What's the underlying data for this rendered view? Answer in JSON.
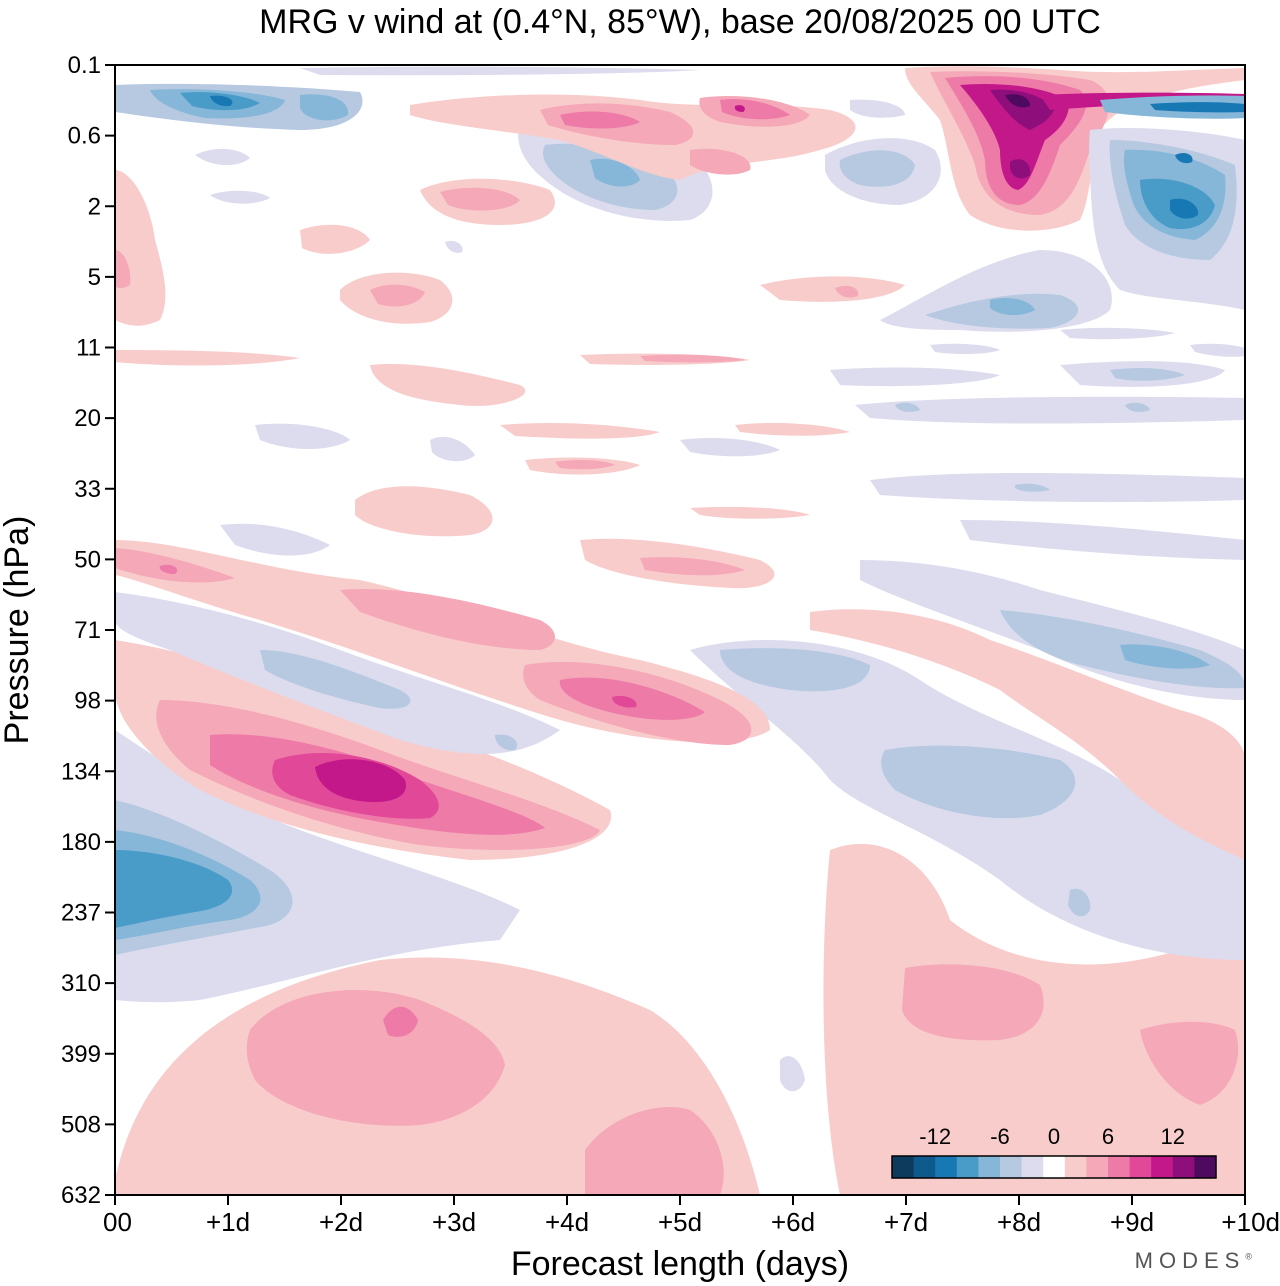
{
  "chart_data": {
    "type": "heatmap",
    "title": "MRG v wind at (0.4°N, 85°W),  base 20/08/2025  00 UTC",
    "xlabel": "Forecast length (days)",
    "ylabel": "Pressure (hPa)",
    "x_ticks": [
      "00",
      "+1d",
      "+2d",
      "+3d",
      "+4d",
      "+5d",
      "+6d",
      "+7d",
      "+8d",
      "+9d",
      "+10d"
    ],
    "x_range_days": [
      0,
      10
    ],
    "y_ticks": [
      "0.1",
      "0.6",
      "2",
      "5",
      "11",
      "20",
      "33",
      "50",
      "71",
      "98",
      "134",
      "180",
      "237",
      "310",
      "399",
      "508",
      "632"
    ],
    "y_axis": "log-pressure, top 0.1 hPa to bottom 632 hPa",
    "colorbar": {
      "labels": [
        "-12",
        "-6",
        "0",
        "6",
        "12"
      ],
      "levels": [
        -16,
        -14,
        -12,
        -10,
        -8,
        -6,
        -4,
        -2,
        2,
        4,
        6,
        8,
        10,
        12,
        14,
        16
      ],
      "colors": [
        "#0d3b5e",
        "#0f5a8c",
        "#1878b4",
        "#4a9cc8",
        "#86b6d8",
        "#b6c9e1",
        "#dcdcee",
        "#ffffff",
        "#f9cccc",
        "#f4a8b8",
        "#ee7aa8",
        "#e24898",
        "#c2188a",
        "#8e0e7c",
        "#4d0a5e"
      ]
    },
    "features": [
      {
        "sign": "positive",
        "peak": 12,
        "x_days": [
          1.6,
          2.8
        ],
        "pressure_hPa": "~134",
        "note": "tilted positive band 98-180 hPa"
      },
      {
        "sign": "positive",
        "peak": 8,
        "x_days": [
          4.0,
          5.3
        ],
        "pressure_hPa": "~98"
      },
      {
        "sign": "negative",
        "peak": -10,
        "x_days": [
          0.0,
          1.5
        ],
        "pressure_hPa": "~237"
      },
      {
        "sign": "positive",
        "peak": 16,
        "x_days": [
          7.4,
          8.6
        ],
        "pressure_hPa": "0.1-2"
      },
      {
        "sign": "negative",
        "peak": -10,
        "x_days": [
          9.0,
          10.0
        ],
        "pressure_hPa": "0.6-5"
      },
      {
        "sign": "negative",
        "peak": -8,
        "x_days": [
          0.4,
          1.6
        ],
        "pressure_hPa": "~0.3"
      },
      {
        "sign": "positive",
        "peak": 6,
        "x_days": [
          1.3,
          3.6
        ],
        "pressure_hPa": "310-508"
      },
      {
        "sign": "negative",
        "peak": -6,
        "x_days": [
          6.8,
          8.4
        ],
        "pressure_hPa": "~134"
      },
      {
        "sign": "negative",
        "peak": -6,
        "x_days": [
          9.0,
          10.0
        ],
        "pressure_hPa": "~71-98"
      }
    ]
  },
  "branding": {
    "text": "MODES",
    "mark": "®"
  }
}
